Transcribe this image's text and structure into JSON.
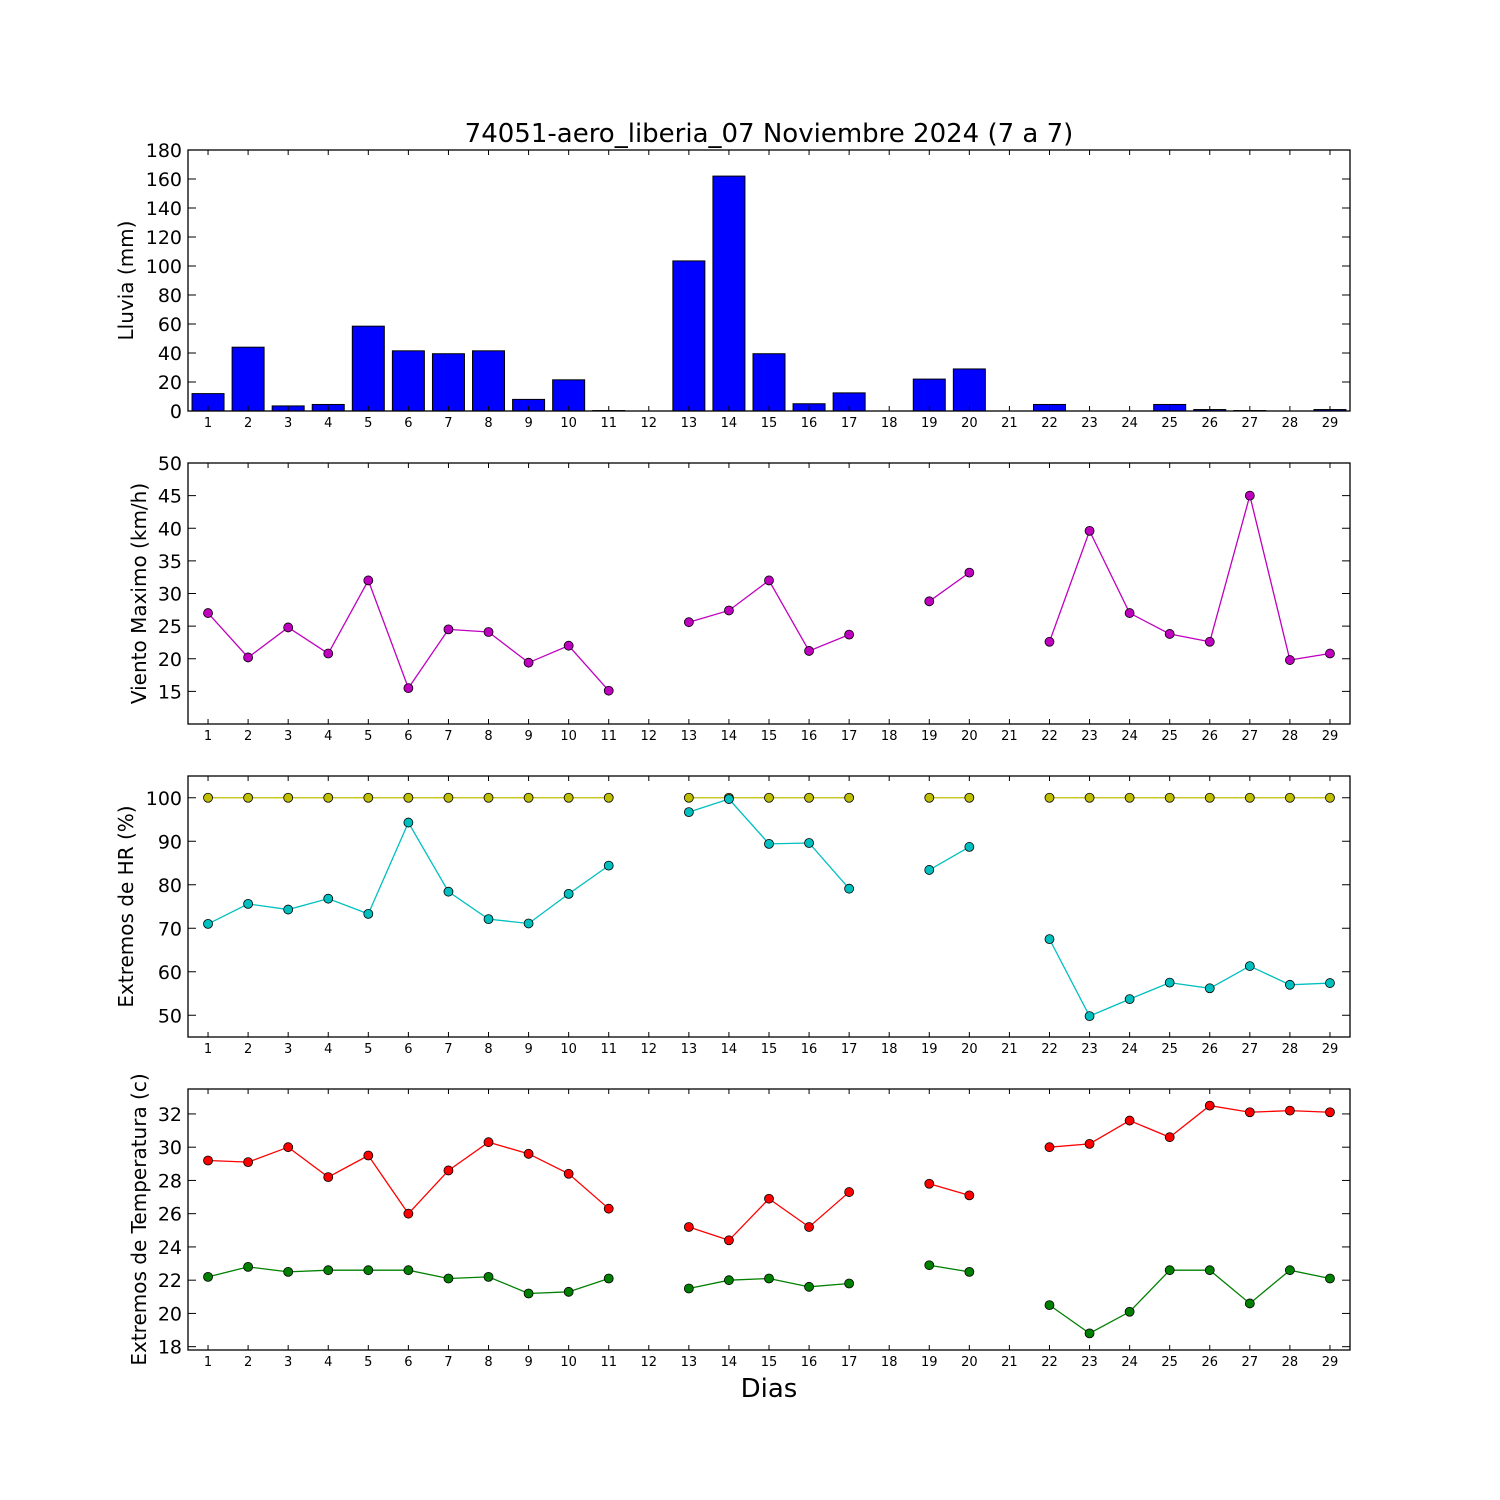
{
  "chart_data": [
    {
      "type": "bar",
      "title": "74051-aero_liberia_07 Noviembre 2024  (7 a 7)",
      "ylabel": "Lluvia (mm)",
      "xlabel": "",
      "ylim": [
        0,
        180
      ],
      "yticks": [
        0,
        20,
        40,
        60,
        80,
        100,
        120,
        140,
        160,
        180
      ],
      "categories": [
        "1",
        "2",
        "3",
        "4",
        "5",
        "6",
        "7",
        "8",
        "9",
        "10",
        "11",
        "12",
        "13",
        "14",
        "15",
        "16",
        "17",
        "18",
        "19",
        "20",
        "21",
        "22",
        "23",
        "24",
        "25",
        "26",
        "27",
        "28",
        "29"
      ],
      "series": [
        {
          "color": "#0000ff",
          "values": [
            12,
            44,
            3.5,
            4.5,
            58.5,
            41.5,
            39.5,
            41.5,
            8,
            21.5,
            0.3,
            0,
            103.5,
            162,
            39.5,
            5,
            12.5,
            0,
            22,
            29,
            0,
            4.5,
            0,
            0,
            4.5,
            1,
            0.3,
            0,
            1
          ]
        }
      ]
    },
    {
      "type": "line",
      "title": "",
      "ylabel": "Viento Maximo (km/h)",
      "xlabel": "",
      "ylim": [
        10,
        50
      ],
      "yticks": [
        15,
        20,
        25,
        30,
        35,
        40,
        45,
        50
      ],
      "categories": [
        "1",
        "2",
        "3",
        "4",
        "5",
        "6",
        "7",
        "8",
        "9",
        "10",
        "11",
        "12",
        "13",
        "14",
        "15",
        "16",
        "17",
        "18",
        "19",
        "20",
        "21",
        "22",
        "23",
        "24",
        "25",
        "26",
        "27",
        "28",
        "29"
      ],
      "series": [
        {
          "color": "#bf00bf",
          "values": [
            27.0,
            20.2,
            24.8,
            20.8,
            32.0,
            15.5,
            24.5,
            24.1,
            19.4,
            22.0,
            15.1,
            null,
            25.6,
            27.4,
            32.0,
            21.2,
            23.7,
            null,
            28.8,
            33.2,
            null,
            22.6,
            39.6,
            27.0,
            23.8,
            22.6,
            45.0,
            19.8,
            20.8
          ]
        }
      ]
    },
    {
      "type": "line",
      "title": "",
      "ylabel": "Extremos de HR (%)",
      "xlabel": "",
      "ylim": [
        45,
        105
      ],
      "yticks": [
        50,
        60,
        70,
        80,
        90,
        100
      ],
      "categories": [
        "1",
        "2",
        "3",
        "4",
        "5",
        "6",
        "7",
        "8",
        "9",
        "10",
        "11",
        "12",
        "13",
        "14",
        "15",
        "16",
        "17",
        "18",
        "19",
        "20",
        "21",
        "22",
        "23",
        "24",
        "25",
        "26",
        "27",
        "28",
        "29"
      ],
      "series": [
        {
          "color": "#bfbf00",
          "values": [
            100,
            100,
            100,
            100,
            100,
            100,
            100,
            100,
            100,
            100,
            100,
            null,
            100,
            100,
            100,
            100,
            100,
            null,
            100,
            100,
            null,
            100,
            100,
            100,
            100,
            100,
            100,
            100,
            100
          ]
        },
        {
          "color": "#00bfbf",
          "values": [
            71.0,
            75.6,
            74.3,
            76.8,
            73.3,
            94.3,
            78.4,
            72.1,
            71.1,
            77.9,
            84.4,
            null,
            96.7,
            99.7,
            89.4,
            89.6,
            79.1,
            null,
            83.4,
            88.7,
            null,
            67.5,
            49.8,
            53.7,
            57.5,
            56.2,
            61.3,
            57.0,
            57.4
          ]
        }
      ]
    },
    {
      "type": "line",
      "title": "",
      "ylabel": "Extremos de Temperatura (c)",
      "xlabel": "Dias",
      "ylim": [
        17.8,
        33.5
      ],
      "yticks": [
        18,
        20,
        22,
        24,
        26,
        28,
        30,
        32
      ],
      "categories": [
        "1",
        "2",
        "3",
        "4",
        "5",
        "6",
        "7",
        "8",
        "9",
        "10",
        "11",
        "12",
        "13",
        "14",
        "15",
        "16",
        "17",
        "18",
        "19",
        "20",
        "21",
        "22",
        "23",
        "24",
        "25",
        "26",
        "27",
        "28",
        "29"
      ],
      "series": [
        {
          "color": "#ff0000",
          "values": [
            29.2,
            29.1,
            30.0,
            28.2,
            29.5,
            26.0,
            28.6,
            30.3,
            29.6,
            28.4,
            26.3,
            null,
            25.2,
            24.4,
            26.9,
            25.2,
            27.3,
            null,
            27.8,
            27.1,
            null,
            30.0,
            30.2,
            31.6,
            30.6,
            32.5,
            32.1,
            32.2,
            32.1
          ]
        },
        {
          "color": "#008000",
          "values": [
            22.2,
            22.8,
            22.5,
            22.6,
            22.6,
            22.6,
            22.1,
            22.2,
            21.2,
            21.3,
            22.1,
            null,
            21.5,
            22.0,
            22.1,
            21.6,
            21.8,
            null,
            22.9,
            22.5,
            null,
            20.5,
            18.8,
            20.1,
            22.6,
            22.6,
            20.6,
            22.6,
            22.1
          ]
        }
      ]
    }
  ]
}
